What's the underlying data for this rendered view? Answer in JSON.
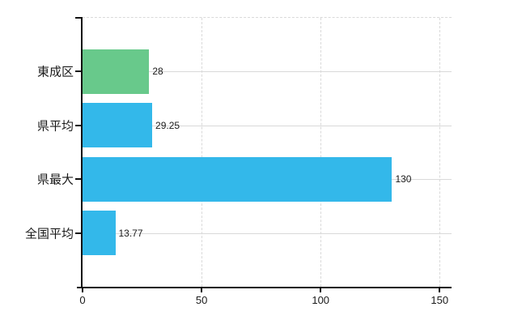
{
  "chart_data": {
    "type": "bar",
    "orientation": "horizontal",
    "categories": [
      "東成区",
      "県平均",
      "県最大",
      "全国平均"
    ],
    "values": [
      28,
      29.25,
      130,
      13.77
    ],
    "value_labels": [
      "28",
      "29.25",
      "130",
      "13.77"
    ],
    "bar_colors": [
      "#68c98b",
      "#33b8ea",
      "#33b8ea",
      "#33b8ea"
    ],
    "xlim": [
      0,
      155
    ],
    "x_ticks": [
      {
        "value": 0,
        "label": "0"
      },
      {
        "value": 50,
        "label": "50"
      },
      {
        "value": 100,
        "label": "100"
      },
      {
        "value": 150,
        "label": "150"
      }
    ],
    "grid": {
      "horizontal_style": "solid",
      "vertical_style": "dashed",
      "top_border_style": "dashed",
      "color": "#d9d9d9"
    },
    "colors": {
      "axis": "#111111",
      "text": "#1a1a1a",
      "background": "#ffffff",
      "bar_blue": "#33b8ea",
      "bar_green": "#68c98b"
    },
    "legend": {
      "visible": false
    }
  }
}
